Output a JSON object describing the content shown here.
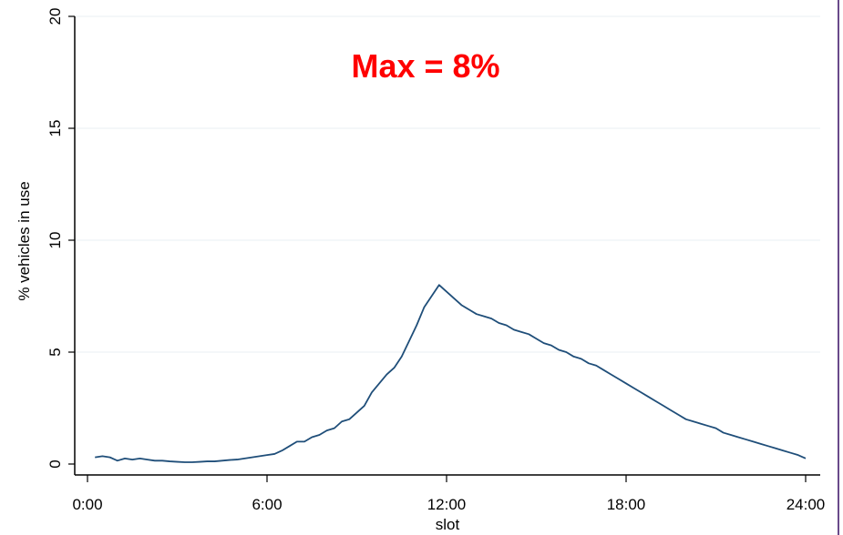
{
  "chart_data": {
    "type": "line",
    "annotation": "Max = 8%",
    "xlabel": "slot",
    "ylabel": "% vehicles in use",
    "x_ticks": [
      "0:00",
      "6:00",
      "12:00",
      "18:00",
      "24:00"
    ],
    "x_tick_hours": [
      0,
      6,
      12,
      18,
      24
    ],
    "y_ticks": [
      "0",
      "5",
      "10",
      "15",
      "20"
    ],
    "y_tick_values": [
      0,
      5,
      10,
      15,
      20
    ],
    "xlim_hours": [
      0,
      24
    ],
    "ylim": [
      0,
      20
    ],
    "grid": "horizontal",
    "legend": "none",
    "colors": {
      "line": "#1f4e79",
      "annotation": "#ff0000",
      "grid": "#eef2f5",
      "axis": "#000000",
      "frame_right": "#6a4a8a"
    },
    "series": [
      {
        "x_hours": [
          0.25,
          0.5,
          0.75,
          1.0,
          1.25,
          1.5,
          1.75,
          2.0,
          2.25,
          2.5,
          2.75,
          3.0,
          3.25,
          3.5,
          3.75,
          4.0,
          4.25,
          4.5,
          4.75,
          5.0,
          5.25,
          5.5,
          5.75,
          6.0,
          6.25,
          6.5,
          6.75,
          7.0,
          7.25,
          7.5,
          7.75,
          8.0,
          8.25,
          8.5,
          8.75,
          9.0,
          9.25,
          9.5,
          9.75,
          10.0,
          10.25,
          10.5,
          10.75,
          11.0,
          11.25,
          11.5,
          11.75,
          12.0,
          12.25,
          12.5,
          12.75,
          13.0,
          13.25,
          13.5,
          13.75,
          14.0,
          14.25,
          14.5,
          14.75,
          15.0,
          15.25,
          15.5,
          15.75,
          16.0,
          16.25,
          16.5,
          16.75,
          17.0,
          17.25,
          17.5,
          17.75,
          18.0,
          18.25,
          18.5,
          18.75,
          19.0,
          19.25,
          19.5,
          19.75,
          20.0,
          20.25,
          20.5,
          20.75,
          21.0,
          21.25,
          21.5,
          21.75,
          22.0,
          22.25,
          22.5,
          22.75,
          23.0,
          23.25,
          23.5,
          23.75,
          24.0
        ],
        "values": [
          0.3,
          0.35,
          0.3,
          0.15,
          0.25,
          0.2,
          0.25,
          0.2,
          0.15,
          0.15,
          0.12,
          0.1,
          0.08,
          0.08,
          0.1,
          0.12,
          0.12,
          0.15,
          0.18,
          0.2,
          0.25,
          0.3,
          0.35,
          0.4,
          0.45,
          0.6,
          0.8,
          1.0,
          1.0,
          1.2,
          1.3,
          1.5,
          1.6,
          1.9,
          2.0,
          2.3,
          2.6,
          3.2,
          3.6,
          4.0,
          4.3,
          4.8,
          5.5,
          6.2,
          7.0,
          7.5,
          8.0,
          7.7,
          7.4,
          7.1,
          6.9,
          6.7,
          6.6,
          6.5,
          6.3,
          6.2,
          6.0,
          5.9,
          5.8,
          5.6,
          5.4,
          5.3,
          5.1,
          5.0,
          4.8,
          4.7,
          4.5,
          4.4,
          4.2,
          4.0,
          3.8,
          3.6,
          3.4,
          3.2,
          3.0,
          2.8,
          2.6,
          2.4,
          2.2,
          2.0,
          1.9,
          1.8,
          1.7,
          1.6,
          1.4,
          1.3,
          1.2,
          1.1,
          1.0,
          0.9,
          0.8,
          0.7,
          0.6,
          0.5,
          0.4,
          0.25
        ]
      }
    ]
  }
}
